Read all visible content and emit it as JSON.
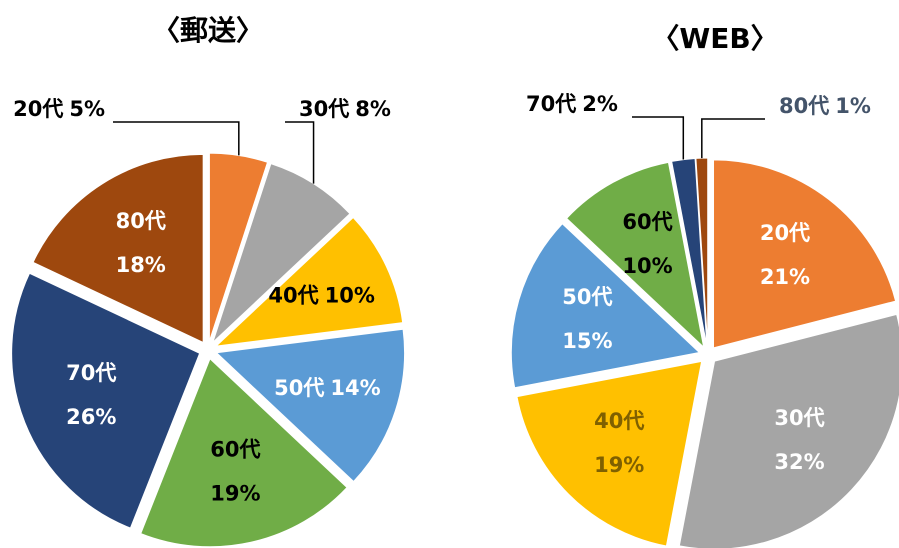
{
  "chart_data": [
    {
      "type": "pie",
      "title": "〈郵送〉",
      "categories": [
        "20代",
        "30代",
        "40代",
        "50代",
        "60代",
        "70代",
        "80代"
      ],
      "values": [
        5,
        8,
        10,
        14,
        19,
        26,
        18
      ],
      "value_labels": [
        "5%",
        "8%",
        "10%",
        "14%",
        "19%",
        "26%",
        "18%"
      ],
      "colors": [
        "#ed7d31",
        "#a5a5a5",
        "#ffc000",
        "#5b9bd5",
        "#70ad47",
        "#264478",
        "#9e480e"
      ],
      "label_colors": [
        "#000000",
        "#000000",
        "#000000",
        "#ffffff",
        "#000000",
        "#ffffff",
        "#ffffff"
      ]
    },
    {
      "type": "pie",
      "title": "〈WEB〉",
      "categories": [
        "20代",
        "30代",
        "40代",
        "50代",
        "60代",
        "70代",
        "80代"
      ],
      "values": [
        21,
        32,
        19,
        15,
        10,
        2,
        1
      ],
      "value_labels": [
        "21%",
        "32%",
        "19%",
        "15%",
        "10%",
        "2%",
        "1%"
      ],
      "colors": [
        "#ed7d31",
        "#a5a5a5",
        "#ffc000",
        "#5b9bd5",
        "#70ad47",
        "#264478",
        "#9e480e"
      ],
      "label_colors": [
        "#ffffff",
        "#ffffff",
        "#7f6000",
        "#ffffff",
        "#000000",
        "#000000",
        "#44546a"
      ]
    }
  ]
}
